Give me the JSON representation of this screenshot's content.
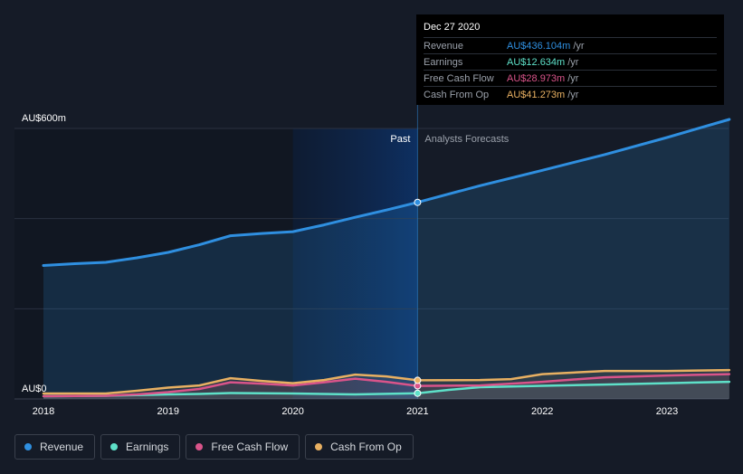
{
  "colors": {
    "revenue": "#2f8fe0",
    "earnings": "#5ee0c8",
    "fcf": "#d9548a",
    "cfo": "#e8b062",
    "background": "#151b27",
    "grid": "#2a3140"
  },
  "tooltip": {
    "date": "Dec 27 2020",
    "rows": [
      {
        "label": "Revenue",
        "value": "AU$436.104m",
        "unit": "/yr",
        "color": "#2f8fe0"
      },
      {
        "label": "Earnings",
        "value": "AU$12.634m",
        "unit": "/yr",
        "color": "#5ee0c8"
      },
      {
        "label": "Free Cash Flow",
        "value": "AU$28.973m",
        "unit": "/yr",
        "color": "#d9548a"
      },
      {
        "label": "Cash From Op",
        "value": "AU$41.273m",
        "unit": "/yr",
        "color": "#e8b062"
      }
    ]
  },
  "legend": [
    {
      "label": "Revenue",
      "color": "#2f8fe0"
    },
    {
      "label": "Earnings",
      "color": "#5ee0c8"
    },
    {
      "label": "Free Cash Flow",
      "color": "#d9548a"
    },
    {
      "label": "Cash From Op",
      "color": "#e8b062"
    }
  ],
  "chart_data": {
    "type": "line",
    "title": "",
    "y_unit_labels": {
      "top": "AU$600m",
      "bottom": "AU$0"
    },
    "ylim": [
      0,
      600
    ],
    "xlim": [
      2018.0,
      2023.5
    ],
    "x_ticks": [
      "2018",
      "2019",
      "2020",
      "2021",
      "2022",
      "2023"
    ],
    "x_tick_values": [
      2018,
      2019,
      2020,
      2021,
      2022,
      2023
    ],
    "grid": true,
    "past_label": "Past",
    "forecast_label": "Analysts Forecasts",
    "divider_x": 2021.0,
    "highlight_range": [
      2020.0,
      2021.0
    ],
    "series": [
      {
        "name": "Revenue",
        "key": "revenue",
        "x": [
          2018.0,
          2018.25,
          2018.5,
          2018.75,
          2019.0,
          2019.25,
          2019.5,
          2019.75,
          2020.0,
          2020.25,
          2020.5,
          2020.75,
          2021.0,
          2021.5,
          2022.0,
          2022.5,
          2023.0,
          2023.5
        ],
        "y": [
          296,
          300,
          303,
          313,
          325,
          342,
          362,
          367,
          371,
          386,
          403,
          419,
          436,
          473,
          507,
          542,
          580,
          620
        ]
      },
      {
        "name": "Earnings",
        "key": "earnings",
        "x": [
          2018.0,
          2018.5,
          2019.0,
          2019.25,
          2019.5,
          2020.0,
          2020.5,
          2021.0,
          2021.25,
          2021.5,
          2022.0,
          2022.5,
          2023.0,
          2023.5
        ],
        "y": [
          6,
          7,
          10,
          11,
          13,
          12,
          10,
          12.634,
          20,
          26,
          29,
          32,
          35,
          38
        ]
      },
      {
        "name": "Free Cash Flow",
        "key": "fcf",
        "x": [
          2018.0,
          2018.5,
          2018.75,
          2019.0,
          2019.25,
          2019.5,
          2019.75,
          2020.0,
          2020.25,
          2020.5,
          2020.75,
          2021.0,
          2021.5,
          2022.0,
          2022.5,
          2023.0,
          2023.5
        ],
        "y": [
          6,
          7,
          10,
          15,
          22,
          37,
          34,
          30,
          37,
          45,
          38,
          28.973,
          30,
          38,
          48,
          52,
          55
        ]
      },
      {
        "name": "Cash From Op",
        "key": "cfo",
        "x": [
          2018.0,
          2018.5,
          2018.75,
          2019.0,
          2019.25,
          2019.5,
          2019.75,
          2020.0,
          2020.25,
          2020.5,
          2020.75,
          2021.0,
          2021.5,
          2021.75,
          2022.0,
          2022.5,
          2023.0,
          2023.5
        ],
        "y": [
          12,
          12,
          18,
          25,
          30,
          46,
          40,
          35,
          42,
          54,
          50,
          41.273,
          42,
          44,
          55,
          62,
          62,
          64
        ]
      }
    ]
  }
}
